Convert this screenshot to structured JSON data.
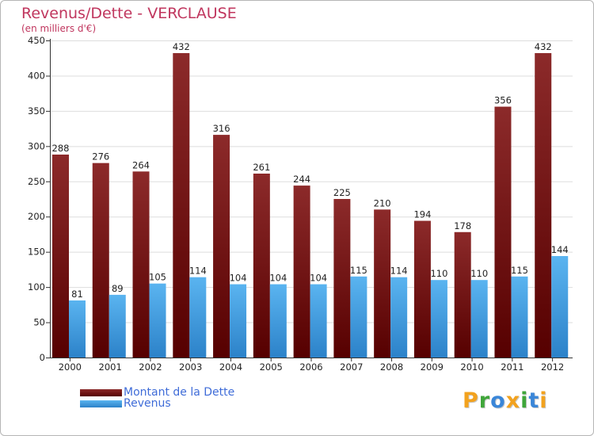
{
  "chart_data": {
    "type": "bar",
    "title": "Revenus/Dette - VERCLAUSE",
    "subtitle": "(en milliers d'€)",
    "xlabel": "",
    "ylabel": "",
    "ylim": [
      0,
      450
    ],
    "yticks": [
      0,
      50,
      100,
      150,
      200,
      250,
      300,
      350,
      400,
      450
    ],
    "grid": true,
    "categories": [
      "2000",
      "2001",
      "2002",
      "2003",
      "2004",
      "2005",
      "2006",
      "2007",
      "2008",
      "2009",
      "2010",
      "2011",
      "2012"
    ],
    "series": [
      {
        "name": "Montant de la Dette",
        "color": "#7a1818",
        "values": [
          288,
          276,
          264,
          432,
          316,
          261,
          244,
          225,
          210,
          194,
          178,
          356,
          432
        ]
      },
      {
        "name": "Revenus",
        "color": "#3d9de6",
        "values": [
          81,
          89,
          105,
          114,
          104,
          104,
          104,
          115,
          114,
          110,
          110,
          115,
          144
        ]
      }
    ],
    "legend_position": "bottom-left"
  },
  "colors": {
    "title": "#c0365e",
    "legend_text": "#3f6cd8",
    "debt_top": "#8c2a2a",
    "debt_bottom": "#560000",
    "revenue_top": "#5ab4f0",
    "revenue_bottom": "#2c82c9"
  },
  "brand": {
    "letters": [
      "P",
      "r",
      "o",
      "x",
      "i",
      "t",
      "i"
    ],
    "colors": [
      "#f2a21e",
      "#3fa63a",
      "#3a86d8",
      "#f2a21e",
      "#3fa63a",
      "#3a86d8",
      "#f2a21e"
    ]
  }
}
